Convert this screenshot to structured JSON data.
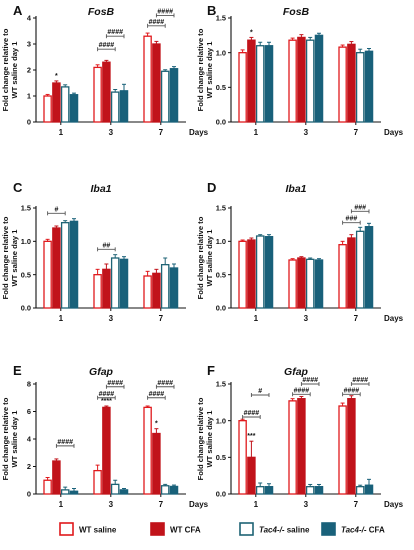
{
  "figure": {
    "legend": [
      {
        "label": "WT saline",
        "fill": "#ffffff",
        "stroke": "#e0191c"
      },
      {
        "label": "WT CFA",
        "fill": "#c1131a",
        "stroke": "#c1131a"
      },
      {
        "label_italic": "Tac4-/-",
        "label_rest": " saline",
        "fill": "#ffffff",
        "stroke": "#1e6375"
      },
      {
        "label_italic": "Tac4-/-",
        "label_rest": " CFA",
        "fill": "#19617a",
        "stroke": "#19617a"
      }
    ],
    "colors": {
      "wt_saline_stroke": "#e0191c",
      "wt_cfa": "#c1131a",
      "tac4_saline_stroke": "#1e6375",
      "tac4_cfa": "#19617a"
    }
  },
  "chart_data": [
    {
      "panel": "A",
      "type": "bar",
      "gene": "FosB",
      "ylabel": "Fold change relative to WT saline day 1",
      "categories": [
        "1",
        "3",
        "7"
      ],
      "unit_label": "Days",
      "ylim": [
        0,
        4
      ],
      "yticks": [
        "0",
        "1",
        "2",
        "3",
        "4"
      ],
      "series": [
        {
          "values": [
            1.0,
            2.1,
            3.3
          ],
          "errors": [
            0.06,
            0.1,
            0.12
          ]
        },
        {
          "values": [
            1.5,
            2.3,
            3.0
          ],
          "errors": [
            0.08,
            0.07,
            0.1
          ]
        },
        {
          "values": [
            1.35,
            1.15,
            1.95
          ],
          "errors": [
            0.08,
            0.1,
            0.06
          ]
        },
        {
          "values": [
            1.05,
            1.2,
            2.05
          ],
          "errors": [
            0.06,
            0.25,
            0.08
          ]
        }
      ],
      "annotations": [
        {
          "text": "*",
          "cat": 0,
          "bar": 1
        },
        {
          "text": "####",
          "cat": 1,
          "from": 0,
          "to": 2,
          "level": 2.8
        },
        {
          "text": "####",
          "cat": 1,
          "from": 1,
          "to": 3,
          "level": 3.3
        },
        {
          "text": "####",
          "cat": 2,
          "from": 0,
          "to": 2,
          "level": 3.7
        },
        {
          "text": "####",
          "cat": 2,
          "from": 1,
          "to": 3,
          "level": 4.1
        }
      ]
    },
    {
      "panel": "B",
      "type": "bar",
      "gene": "FosB",
      "ylabel": "Fold change relative to WT saline day 1",
      "categories": [
        "1",
        "3",
        "7"
      ],
      "unit_label": "Days",
      "ylim": [
        0,
        1.5
      ],
      "yticks": [
        "0.0",
        "0.5",
        "1.0",
        "1.5"
      ],
      "series": [
        {
          "values": [
            1.0,
            1.18,
            1.08
          ],
          "errors": [
            0.04,
            0.03,
            0.03
          ]
        },
        {
          "values": [
            1.18,
            1.22,
            1.12
          ],
          "errors": [
            0.04,
            0.04,
            0.04
          ]
        },
        {
          "values": [
            1.1,
            1.18,
            1.0
          ],
          "errors": [
            0.05,
            0.04,
            0.05
          ]
        },
        {
          "values": [
            1.1,
            1.25,
            1.02
          ],
          "errors": [
            0.05,
            0.03,
            0.04
          ]
        }
      ],
      "annotations": [
        {
          "text": "*",
          "cat": 0,
          "bar": 1
        }
      ]
    },
    {
      "panel": "C",
      "type": "bar",
      "gene": "Iba1",
      "ylabel": "Fold change relative to WT saline day 1",
      "categories": [
        "1",
        "3",
        "7"
      ],
      "unit_label": "",
      "ylim": [
        0,
        1.5
      ],
      "yticks": [
        "0.0",
        "0.5",
        "1.0",
        "1.5"
      ],
      "series": [
        {
          "values": [
            1.0,
            0.5,
            0.48
          ],
          "errors": [
            0.03,
            0.08,
            0.07
          ]
        },
        {
          "values": [
            1.2,
            0.58,
            0.52
          ],
          "errors": [
            0.03,
            0.08,
            0.06
          ]
        },
        {
          "values": [
            1.28,
            0.75,
            0.65
          ],
          "errors": [
            0.03,
            0.05,
            0.1
          ]
        },
        {
          "values": [
            1.3,
            0.73,
            0.6
          ],
          "errors": [
            0.04,
            0.04,
            0.06
          ]
        }
      ],
      "annotations": [
        {
          "text": "#",
          "cat": 0,
          "from": 0,
          "to": 2,
          "level": 1.42
        },
        {
          "text": "##",
          "cat": 1,
          "from": 0,
          "to": 2,
          "level": 0.88
        }
      ]
    },
    {
      "panel": "D",
      "type": "bar",
      "gene": "Iba1",
      "ylabel": "Fold change relative to WT saline day 1",
      "categories": [
        "1",
        "3",
        "7"
      ],
      "unit_label": "Days",
      "ylim": [
        0,
        1.5
      ],
      "yticks": [
        "0.0",
        "0.5",
        "1.0",
        "1.5"
      ],
      "series": [
        {
          "values": [
            1.0,
            0.72,
            0.95
          ],
          "errors": [
            0.02,
            0.02,
            0.05
          ]
        },
        {
          "values": [
            1.02,
            0.75,
            1.05
          ],
          "errors": [
            0.03,
            0.02,
            0.05
          ]
        },
        {
          "values": [
            1.08,
            0.73,
            1.15
          ],
          "errors": [
            0.02,
            0.02,
            0.06
          ]
        },
        {
          "values": [
            1.07,
            0.72,
            1.22
          ],
          "errors": [
            0.03,
            0.02,
            0.05
          ]
        }
      ],
      "annotations": [
        {
          "text": "###",
          "cat": 2,
          "from": 0,
          "to": 2,
          "level": 1.28
        },
        {
          "text": "###",
          "cat": 2,
          "from": 1,
          "to": 3,
          "level": 1.45
        }
      ]
    },
    {
      "panel": "E",
      "type": "bar",
      "gene": "Gfap",
      "ylabel": "Fold change relative to WT saline day 1",
      "categories": [
        "1",
        "3",
        "7"
      ],
      "unit_label": "Days",
      "ylim": [
        0,
        8
      ],
      "yticks": [
        "0",
        "2",
        "4",
        "6",
        "8"
      ],
      "series": [
        {
          "values": [
            1.0,
            1.7,
            6.3
          ],
          "errors": [
            0.2,
            0.4,
            0.1
          ]
        },
        {
          "values": [
            2.4,
            6.3,
            4.4
          ],
          "errors": [
            0.15,
            0.1,
            0.35
          ]
        },
        {
          "values": [
            0.3,
            0.7,
            0.6
          ],
          "errors": [
            0.2,
            0.3,
            0.1
          ]
        },
        {
          "values": [
            0.2,
            0.3,
            0.55
          ],
          "errors": [
            0.2,
            0.1,
            0.1
          ]
        }
      ],
      "annotations": [
        {
          "text": "####",
          "cat": 0,
          "from": 1,
          "to": 3,
          "level": 3.5
        },
        {
          "text": "****",
          "cat": 1,
          "bar": 1
        },
        {
          "text": "####",
          "cat": 1,
          "from": 0,
          "to": 2,
          "level": 7.0
        },
        {
          "text": "####",
          "cat": 1,
          "from": 1,
          "to": 3,
          "level": 7.8
        },
        {
          "text": "*",
          "cat": 2,
          "bar": 1
        },
        {
          "text": "####",
          "cat": 2,
          "from": 0,
          "to": 2,
          "level": 7.0
        },
        {
          "text": "####",
          "cat": 2,
          "from": 1,
          "to": 3,
          "level": 7.8
        }
      ]
    },
    {
      "panel": "F",
      "type": "bar",
      "gene": "Gfap",
      "ylabel": "Fold change relative to WT saline day 1",
      "categories": [
        "1",
        "3",
        "7"
      ],
      "unit_label": "Days",
      "ylim": [
        0,
        1.5
      ],
      "yticks": [
        "0.0",
        "0.5",
        "1.0",
        "1.5"
      ],
      "series": [
        {
          "values": [
            1.0,
            1.27,
            1.2
          ],
          "errors": [
            0.02,
            0.03,
            0.04
          ]
        },
        {
          "values": [
            0.5,
            1.3,
            1.3
          ],
          "errors": [
            0.22,
            0.03,
            0.04
          ]
        },
        {
          "values": [
            0.1,
            0.1,
            0.1
          ],
          "errors": [
            0.05,
            0.03,
            0.02
          ]
        },
        {
          "values": [
            0.1,
            0.1,
            0.12
          ],
          "errors": [
            0.04,
            0.03,
            0.08
          ]
        }
      ],
      "annotations": [
        {
          "text": "***",
          "cat": 0,
          "bar": 1
        },
        {
          "text": "####",
          "cat": 0,
          "from": 0,
          "to": 2,
          "level": 1.05
        },
        {
          "text": "#",
          "cat": 0,
          "from": 1,
          "to": 3,
          "level": 1.35
        },
        {
          "text": "####",
          "cat": 1,
          "from": 0,
          "to": 2,
          "level": 1.36
        },
        {
          "text": "####",
          "cat": 1,
          "from": 1,
          "to": 3,
          "level": 1.5
        },
        {
          "text": "####",
          "cat": 2,
          "from": 0,
          "to": 2,
          "level": 1.36
        },
        {
          "text": "####",
          "cat": 2,
          "from": 1,
          "to": 3,
          "level": 1.5
        }
      ]
    }
  ]
}
